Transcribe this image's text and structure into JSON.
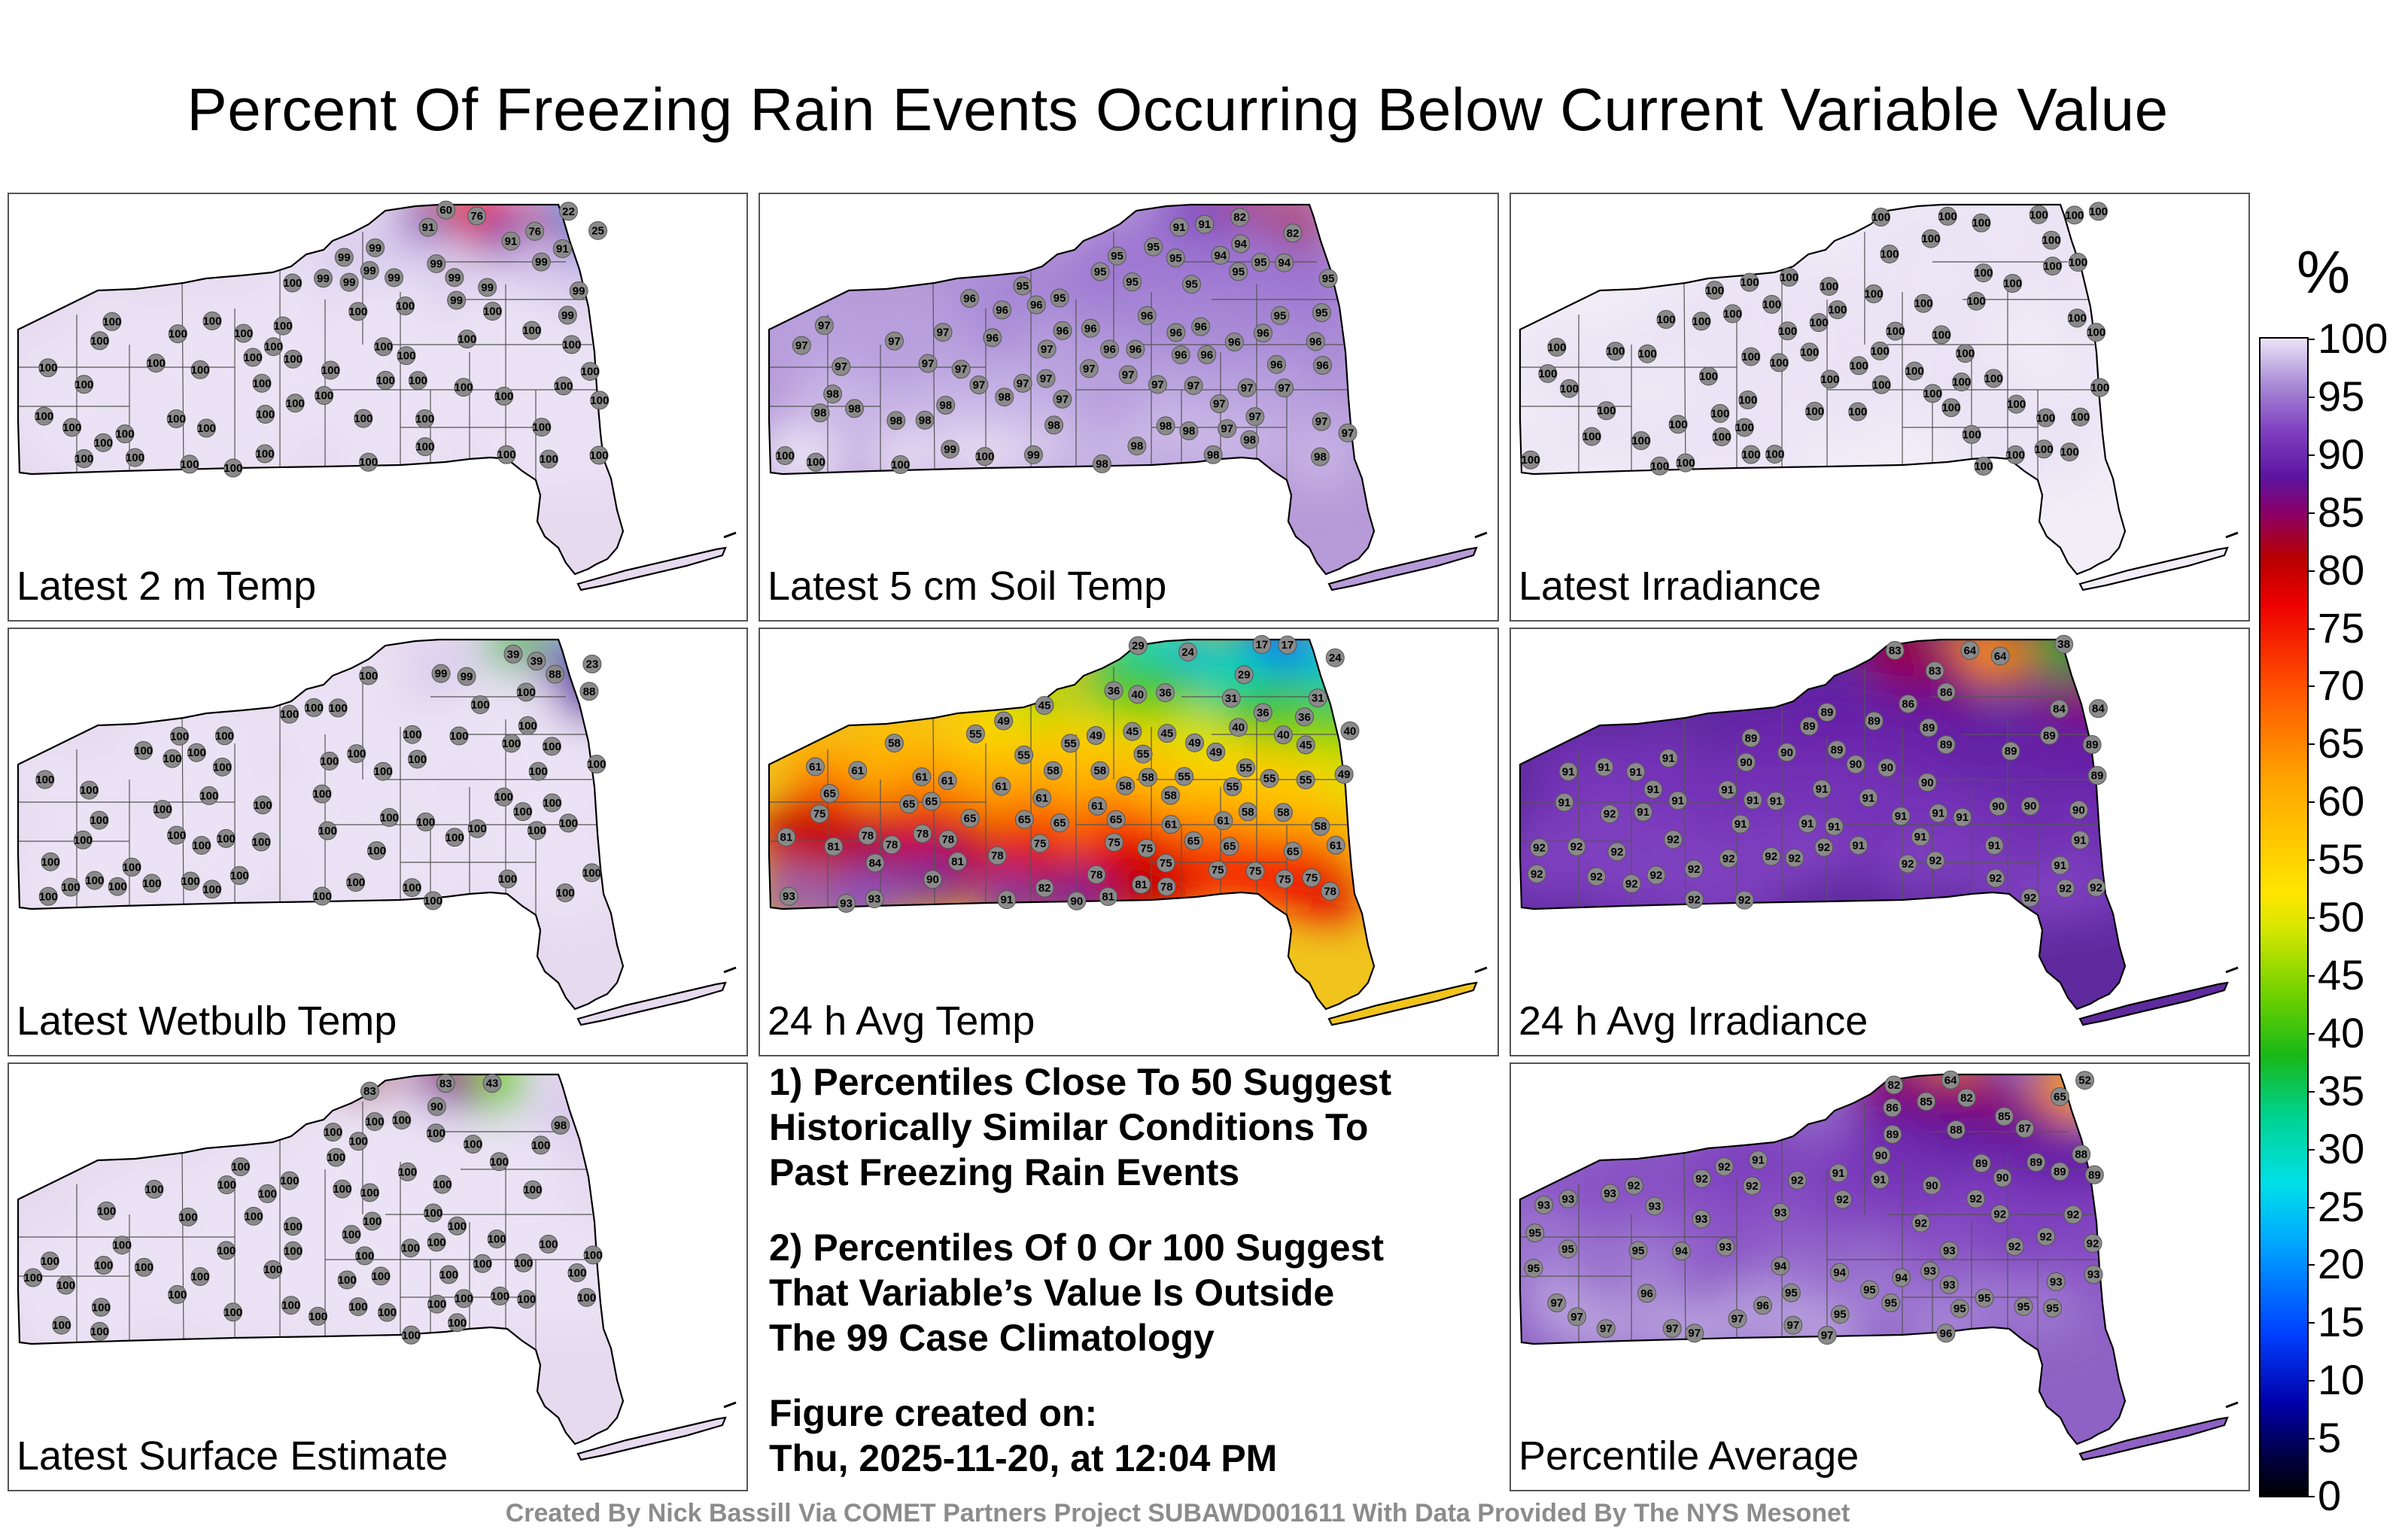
{
  "title": "Percent Of Freezing Rain Events Occurring Below Current Variable Value",
  "panels": [
    {
      "label": "Latest 2 m Temp",
      "base_color": "#e6daef",
      "stations": [
        "22",
        "25",
        "99",
        "100",
        "91",
        "99",
        "91",
        "60",
        "76",
        "99",
        "99",
        "91",
        "100",
        "99",
        "100",
        "76",
        "99",
        "99",
        "100",
        "100",
        "99",
        "99",
        "100",
        "100",
        "100",
        "100",
        "99",
        "99",
        "100",
        "100",
        "99",
        "99",
        "100",
        "100",
        "100",
        "100",
        "100",
        "100",
        "100",
        "100",
        "100",
        "100",
        "100",
        "100",
        "100",
        "100",
        "100",
        "100",
        "100",
        "100",
        "100",
        "100",
        "100",
        "100",
        "100",
        "100",
        "100",
        "100",
        "100",
        "100",
        "100",
        "100",
        "100",
        "100",
        "100",
        "100",
        "100",
        "100",
        "100",
        "100",
        "100",
        "100",
        "100",
        "100"
      ]
    },
    {
      "label": "Latest 5 cm Soil Temp",
      "base_color": "#b79bd8",
      "stations": [
        "95",
        "97",
        "97",
        "91",
        "94",
        "96",
        "96",
        "100",
        "95",
        "97",
        "95",
        "95",
        "96",
        "97",
        "96",
        "97",
        "97",
        "95",
        "95",
        "97",
        "82",
        "91",
        "98",
        "97",
        "98",
        "98",
        "96",
        "96",
        "97",
        "98",
        "94",
        "95",
        "96",
        "96",
        "98",
        "97",
        "98",
        "96",
        "95",
        "97",
        "97",
        "96",
        "95",
        "98",
        "98",
        "99",
        "96",
        "97",
        "96",
        "96",
        "96",
        "98",
        "96",
        "95",
        "97",
        "97",
        "94",
        "97",
        "96",
        "96",
        "100",
        "98",
        "82",
        "95",
        "98",
        "97",
        "97",
        "98",
        "95",
        "97",
        "97",
        "98",
        "100",
        "96",
        "97",
        "97",
        "98",
        "99",
        "95",
        "97",
        "98",
        "100"
      ]
    },
    {
      "label": "Latest Irradiance",
      "base_color": "#f1eef7",
      "stations": [
        "100",
        "100",
        "100",
        "100",
        "100",
        "100",
        "100",
        "100",
        "100",
        "100",
        "100",
        "100",
        "100",
        "100",
        "100",
        "100",
        "100",
        "100",
        "100",
        "100",
        "100",
        "100",
        "100",
        "100",
        "100",
        "100",
        "100",
        "100",
        "100",
        "100",
        "100",
        "100",
        "100",
        "100",
        "100",
        "100",
        "100",
        "100",
        "100",
        "100",
        "100",
        "100",
        "100",
        "100",
        "100",
        "100",
        "100",
        "100",
        "100",
        "100",
        "100",
        "100",
        "100",
        "100",
        "100",
        "100",
        "100",
        "100",
        "100",
        "100",
        "100",
        "100",
        "100",
        "100",
        "100",
        "100",
        "100",
        "100",
        "100",
        "100",
        "100",
        "100",
        "100",
        "100"
      ]
    },
    {
      "label": "Latest Wetbulb Temp",
      "base_color": "#e6daef",
      "stations": [
        "23",
        "39",
        "39",
        "88",
        "99",
        "88",
        "100",
        "100",
        "99",
        "100",
        "100",
        "100",
        "100",
        "100",
        "100",
        "100",
        "100",
        "100",
        "100",
        "100",
        "100",
        "100",
        "100",
        "100",
        "100",
        "100",
        "100",
        "100",
        "100",
        "100",
        "100",
        "100",
        "100",
        "100",
        "100",
        "100",
        "100",
        "100",
        "100",
        "100",
        "100",
        "100",
        "100",
        "100",
        "100",
        "100",
        "100",
        "100",
        "100",
        "100",
        "100",
        "100",
        "100",
        "100",
        "100",
        "100",
        "100",
        "100",
        "100",
        "100",
        "100",
        "100",
        "100",
        "100",
        "100",
        "100",
        "100",
        "100",
        "100",
        "100"
      ]
    },
    {
      "label": "24 h Avg Temp",
      "base_color": "#f0c41c",
      "stations": [
        "40",
        "31",
        "17",
        "31",
        "49",
        "40",
        "45",
        "36",
        "24",
        "29",
        "17",
        "45",
        "45",
        "49",
        "24",
        "36",
        "36",
        "29",
        "36",
        "65",
        "65",
        "49",
        "40",
        "40",
        "65",
        "75",
        "81",
        "82",
        "81",
        "75",
        "75",
        "78",
        "49",
        "61",
        "55",
        "58",
        "61",
        "61",
        "65",
        "58",
        "45",
        "58",
        "61",
        "61",
        "55",
        "58",
        "65",
        "61",
        "58",
        "55",
        "58",
        "75",
        "78",
        "58",
        "61",
        "55",
        "61",
        "55",
        "49",
        "58",
        "75",
        "78",
        "65",
        "61",
        "58",
        "55",
        "55",
        "55",
        "81",
        "78",
        "75",
        "65",
        "75",
        "81",
        "75",
        "78",
        "65",
        "55",
        "61",
        "78",
        "78",
        "78",
        "84",
        "81",
        "65",
        "65",
        "75",
        "90",
        "93",
        "91",
        "93",
        "93",
        "90"
      ]
    },
    {
      "label": "24 h Avg Irradiance",
      "base_color": "#5f2a9e",
      "stations": [
        "38",
        "84",
        "91",
        "86",
        "64",
        "90",
        "83",
        "90",
        "92",
        "91",
        "89",
        "92",
        "91",
        "90",
        "90",
        "84",
        "89",
        "86",
        "89",
        "90",
        "89",
        "91",
        "91",
        "83",
        "90",
        "91",
        "91",
        "89",
        "89",
        "92",
        "91",
        "90",
        "92",
        "91",
        "91",
        "92",
        "90",
        "91",
        "91",
        "89",
        "91",
        "92",
        "91",
        "92",
        "92",
        "91",
        "91",
        "89",
        "91",
        "92",
        "91",
        "91",
        "92",
        "92",
        "92",
        "92",
        "92",
        "92",
        "92",
        "91",
        "91",
        "92",
        "64",
        "91",
        "92",
        "92",
        "91",
        "92",
        "91",
        "89",
        "89",
        "92",
        "89",
        "92"
      ]
    },
    {
      "label": "Latest Surface Estimate",
      "base_color": "#e6daef",
      "stations": [
        "43",
        "83",
        "90",
        "98",
        "83",
        "100",
        "100",
        "100",
        "100",
        "100",
        "100",
        "100",
        "100",
        "100",
        "100",
        "100",
        "100",
        "100",
        "100",
        "100",
        "100",
        "100",
        "100",
        "100",
        "100",
        "100",
        "100",
        "100",
        "100",
        "100",
        "100",
        "100",
        "100",
        "100",
        "100",
        "100",
        "100",
        "100",
        "100",
        "100",
        "100",
        "100",
        "100",
        "100",
        "100",
        "100",
        "100",
        "100",
        "100",
        "100",
        "100",
        "100",
        "100",
        "100",
        "100",
        "100",
        "100",
        "100",
        "100",
        "100",
        "100",
        "100",
        "100",
        "100",
        "100",
        "100",
        "100",
        "100",
        "100",
        "100"
      ]
    },
    {
      "label": "Percentile Average",
      "base_color": "#8e62c4",
      "stations": [
        "52",
        "65",
        "93",
        "82",
        "64",
        "88",
        "89",
        "90",
        "82",
        "89",
        "86",
        "87",
        "85",
        "88",
        "89",
        "89",
        "90",
        "93",
        "92",
        "93",
        "91",
        "92",
        "85",
        "93",
        "92",
        "92",
        "93",
        "92",
        "92",
        "93",
        "95",
        "95",
        "95",
        "94",
        "95",
        "94",
        "95",
        "93",
        "92",
        "93",
        "92",
        "91",
        "93",
        "94",
        "94",
        "95",
        "96",
        "92",
        "92",
        "95",
        "95",
        "92",
        "93",
        "92",
        "93",
        "90",
        "95",
        "91",
        "97",
        "96",
        "95",
        "89",
        "92",
        "95",
        "97",
        "96",
        "97",
        "97",
        "97",
        "97",
        "97",
        "93",
        "97",
        "95"
      ]
    }
  ],
  "notes": {
    "line1": "1) Percentiles Close To 50 Suggest",
    "line2": "Historically Similar Conditions To",
    "line3": "Past Freezing Rain Events",
    "line4": "2) Percentiles Of 0 Or 100 Suggest",
    "line5": "That Variable’s Value Is Outside",
    "line6": "The 99 Case Climatology",
    "created_label": "Figure created on:",
    "created_value": "Thu, 2025-11-20, at 12:04 PM"
  },
  "colorbar": {
    "unit": "%",
    "ticks": [
      "0",
      "5",
      "10",
      "15",
      "20",
      "25",
      "30",
      "35",
      "40",
      "45",
      "50",
      "55",
      "60",
      "65",
      "70",
      "75",
      "80",
      "85",
      "90",
      "95",
      "100"
    ]
  },
  "footer": "Created By Nick Bassill Via COMET Partners Project SUBAWD001611 With Data Provided By The NYS Mesonet",
  "chart_data": {
    "type": "heatmap",
    "title": "Percent Of Freezing Rain Events Occurring Below Current Variable Value",
    "colorbar_label": "%",
    "range": [
      0,
      100
    ],
    "panel_summaries": [
      {
        "panel": "Latest 2 m Temp",
        "min_station_value": 22,
        "typical_value": 100
      },
      {
        "panel": "Latest 5 cm Soil Temp",
        "min_station_value": 82,
        "typical_value": 96
      },
      {
        "panel": "Latest Irradiance",
        "min_station_value": 100,
        "typical_value": 100
      },
      {
        "panel": "Latest Wetbulb Temp",
        "min_station_value": 23,
        "typical_value": 100
      },
      {
        "panel": "24 h Avg Temp",
        "min_station_value": 17,
        "typical_value": 61
      },
      {
        "panel": "24 h Avg Irradiance",
        "min_station_value": 38,
        "typical_value": 91
      },
      {
        "panel": "Latest Surface Estimate",
        "min_station_value": 43,
        "typical_value": 100
      },
      {
        "panel": "Percentile Average",
        "min_station_value": 52,
        "typical_value": 93
      }
    ]
  }
}
